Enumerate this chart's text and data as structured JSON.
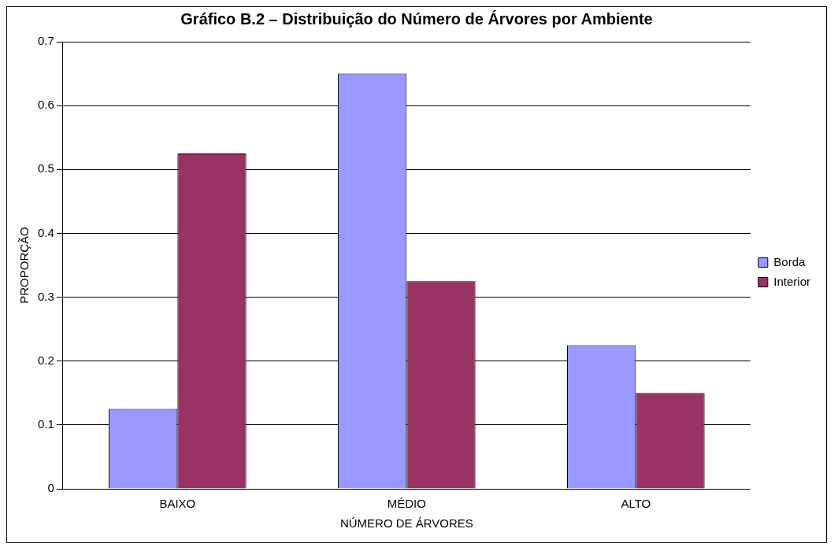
{
  "chart_data": {
    "type": "bar",
    "title": "Gráfico B.2 – Distribuição do Número de Árvores por Ambiente",
    "xlabel": "NÚMERO DE ÁRVORES",
    "ylabel": "PROPORÇÃO",
    "categories": [
      "BAIXO",
      "MÉDIO",
      "ALTO"
    ],
    "series": [
      {
        "name": "Borda",
        "color": "#9999ff",
        "values": [
          0.125,
          0.65,
          0.225
        ]
      },
      {
        "name": "Interior",
        "color": "#993366",
        "values": [
          0.525,
          0.325,
          0.15
        ]
      }
    ],
    "ylim": [
      0,
      0.7
    ],
    "yticks": [
      0,
      0.1,
      0.2,
      0.3,
      0.4,
      0.5,
      0.6,
      0.7
    ],
    "grid": "y",
    "legend": "right"
  }
}
